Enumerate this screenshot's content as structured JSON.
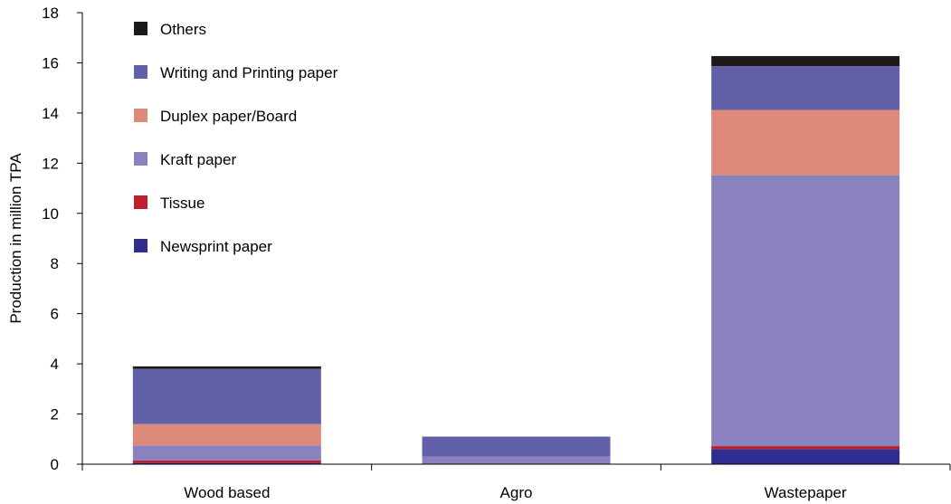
{
  "chart_data": {
    "type": "bar",
    "stacked": true,
    "title": "",
    "xlabel": "",
    "ylabel": "Production in million TPA",
    "ylim": [
      0,
      18
    ],
    "yticks": [
      0,
      2,
      4,
      6,
      8,
      10,
      12,
      14,
      16,
      18
    ],
    "grid": false,
    "legend_position": "top-left",
    "categories": [
      "Wood based",
      "Agro",
      "Wastepaper"
    ],
    "series": [
      {
        "name": "Newsprint paper",
        "color": "#2e2e8e",
        "values": [
          0.05,
          0.0,
          0.6
        ]
      },
      {
        "name": "Tissue",
        "color": "#c0202e",
        "values": [
          0.1,
          0.0,
          0.12
        ]
      },
      {
        "name": "Kraft paper",
        "color": "#8a82bf",
        "values": [
          0.6,
          0.3,
          10.8
        ]
      },
      {
        "name": "Duplex paper/Board",
        "color": "#dd8a7a",
        "values": [
          0.85,
          0.0,
          2.6
        ]
      },
      {
        "name": "Writing and Printing paper",
        "color": "#6360aa",
        "values": [
          2.2,
          0.8,
          1.75
        ]
      },
      {
        "name": "Others",
        "color": "#1e1a1c",
        "values": [
          0.1,
          0.0,
          0.4
        ]
      }
    ]
  }
}
